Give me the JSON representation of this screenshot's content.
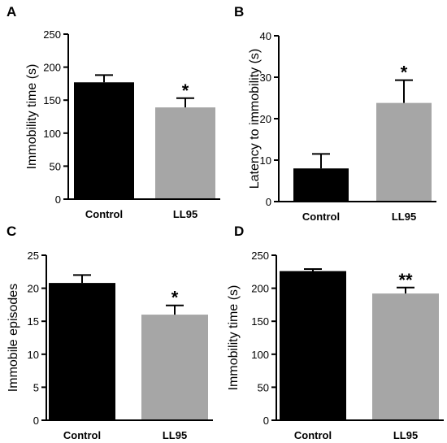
{
  "colors": {
    "control": "#000000",
    "ll95": "#a6a6a6",
    "axis": "#000000"
  },
  "chart_data": [
    {
      "panel": "A",
      "type": "bar",
      "categories": [
        "Control",
        "LL95"
      ],
      "values": [
        177,
        139
      ],
      "errors": [
        11,
        14
      ],
      "significance": [
        "",
        "*"
      ],
      "ylabel": "Immobility time (s)",
      "xlabel": "",
      "ylim": [
        0,
        250
      ],
      "yticks": [
        0,
        50,
        100,
        150,
        200,
        250
      ],
      "grid": false
    },
    {
      "panel": "B",
      "type": "bar",
      "categories": [
        "Control",
        "LL95"
      ],
      "values": [
        8,
        23.8
      ],
      "errors": [
        3.5,
        5.5
      ],
      "significance": [
        "",
        "*"
      ],
      "ylabel": "Latency to immobility (s)",
      "xlabel": "",
      "ylim": [
        0,
        40
      ],
      "yticks": [
        0,
        10,
        20,
        30,
        40
      ],
      "grid": false
    },
    {
      "panel": "C",
      "type": "bar",
      "categories": [
        "Control",
        "LL95"
      ],
      "values": [
        20.8,
        16
      ],
      "errors": [
        1.2,
        1.4
      ],
      "significance": [
        "",
        "*"
      ],
      "ylabel": "Immobile episodes",
      "xlabel": "",
      "ylim": [
        0,
        25
      ],
      "yticks": [
        0,
        5,
        10,
        15,
        20,
        25
      ],
      "grid": false
    },
    {
      "panel": "D",
      "type": "bar",
      "categories": [
        "Control",
        "LL95"
      ],
      "values": [
        226,
        192
      ],
      "errors": [
        3,
        9
      ],
      "significance": [
        "",
        "**"
      ],
      "ylabel": "Immobility time (s)",
      "xlabel": "",
      "ylim": [
        0,
        250
      ],
      "yticks": [
        0,
        50,
        100,
        150,
        200,
        250
      ],
      "grid": false
    }
  ]
}
